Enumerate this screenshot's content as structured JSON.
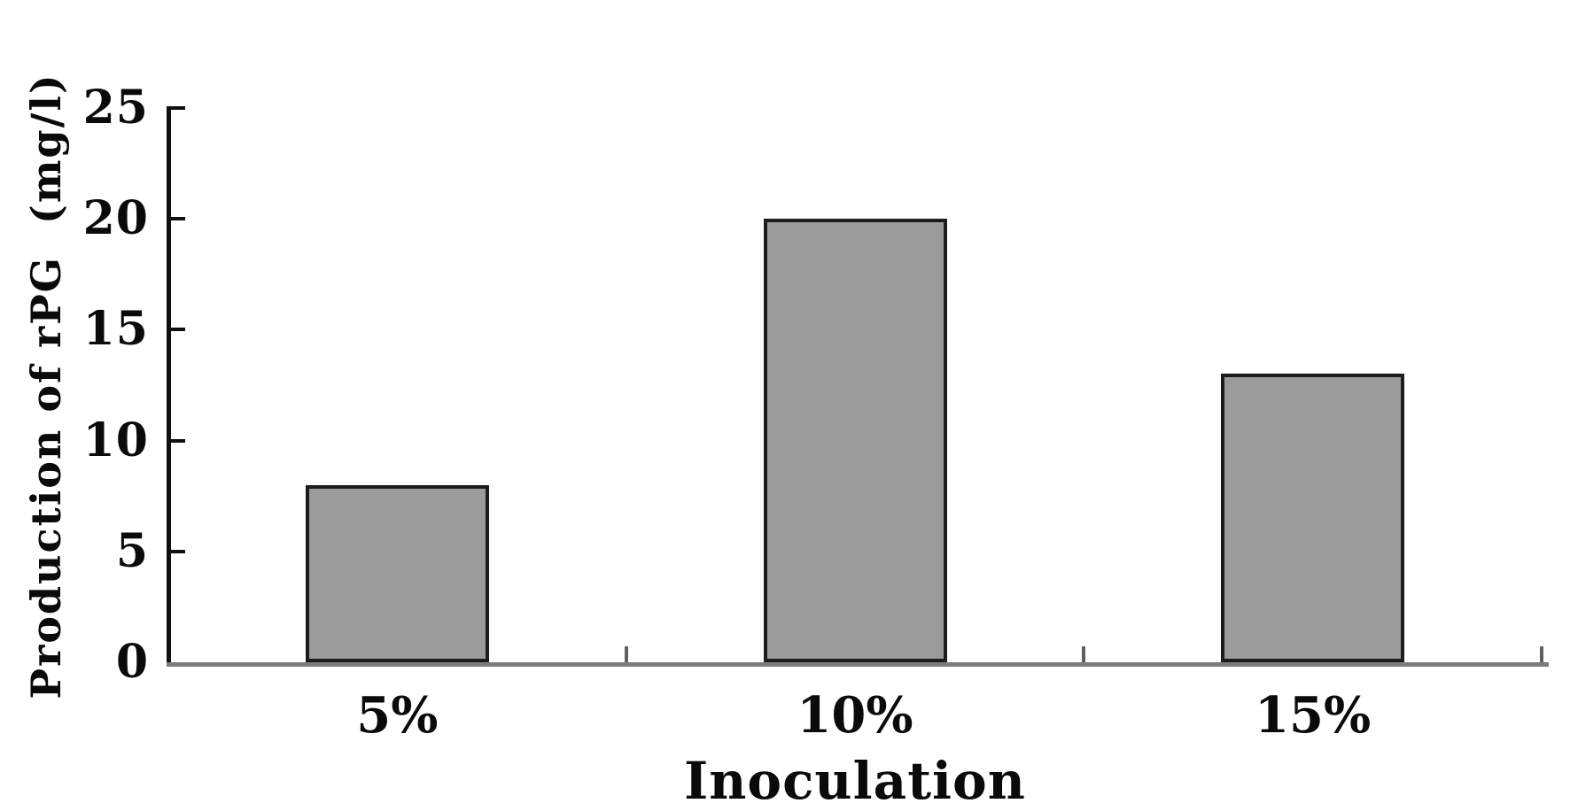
{
  "chart_data": {
    "type": "bar",
    "categories": [
      "5%",
      "10%",
      "15%"
    ],
    "values": [
      8,
      20,
      13
    ],
    "title": "",
    "xlabel": "Inoculation",
    "ylabel": "Production of rPG  (mg/l)",
    "ylim": [
      0,
      25
    ],
    "yticks": [
      25,
      20,
      15,
      10,
      5,
      0
    ],
    "grid": false,
    "legend": "none",
    "colors": {
      "bar_fill": "#9b9b9b",
      "bar_border": "#1c1c1c",
      "y_axis": "#101010",
      "x_axis": "#7d7d7d",
      "text": "#0a0a0a",
      "background": "#ffffff"
    }
  }
}
